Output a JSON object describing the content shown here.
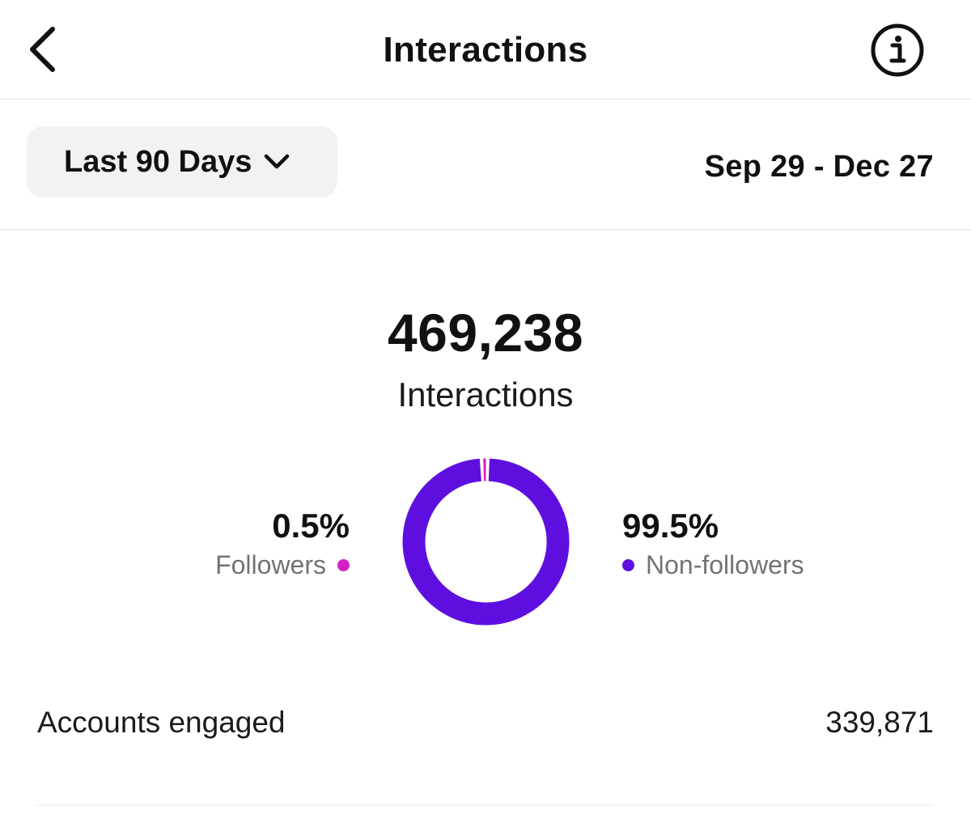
{
  "header": {
    "title": "Interactions",
    "back_icon": "chevron-left-icon",
    "info_icon": "info-icon"
  },
  "filter": {
    "range_label": "Last 90 Days",
    "range_icon": "chevron-down-icon",
    "date_range": "Sep 29 - Dec 27"
  },
  "summary": {
    "total": "469,238",
    "total_label": "Interactions"
  },
  "breakdown": {
    "followers": {
      "percent_label": "0.5%",
      "percent": 0.5,
      "label": "Followers",
      "color": "#d41fc4"
    },
    "non_followers": {
      "percent_label": "99.5%",
      "percent": 99.5,
      "label": "Non-followers",
      "color": "#5e0fe0"
    }
  },
  "metrics": [
    {
      "label": "Accounts engaged",
      "value": "339,871"
    }
  ]
}
